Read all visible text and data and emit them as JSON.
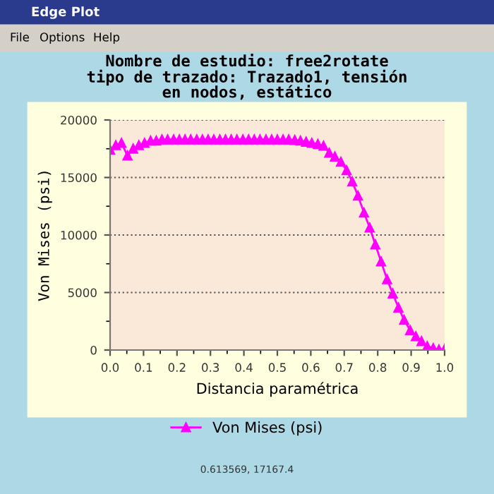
{
  "chart_data": {
    "type": "line",
    "title": "Nombre de estudio: free2rotate\ntipo de trazado: Trazado1, tensión\nen nodos, estático",
    "xlabel": "Distancia paramétrica",
    "ylabel": "Von Mises (psi)",
    "annotations": [
      "Edge Plot",
      "File",
      "Options",
      "Help",
      "0.613569, 17167.4"
    ],
    "x": [
      0,
      0.017,
      0.034,
      0.052,
      0.069,
      0.086,
      0.103,
      0.121,
      0.138,
      0.155,
      0.172,
      0.19,
      0.207,
      0.224,
      0.241,
      0.259,
      0.276,
      0.293,
      0.31,
      0.328,
      0.345,
      0.362,
      0.379,
      0.397,
      0.414,
      0.431,
      0.448,
      0.466,
      0.483,
      0.5,
      0.517,
      0.534,
      0.552,
      0.569,
      0.586,
      0.603,
      0.621,
      0.638,
      0.655,
      0.672,
      0.69,
      0.707,
      0.724,
      0.741,
      0.759,
      0.776,
      0.793,
      0.81,
      0.828,
      0.845,
      0.862,
      0.879,
      0.897,
      0.914,
      0.931,
      0.948,
      0.966,
      0.983,
      1.0
    ],
    "series": [
      {
        "name": "Von Mises (psi)",
        "color": "#ff00ff",
        "values": [
          17400,
          17800,
          18000,
          16900,
          17500,
          17800,
          18000,
          18200,
          18200,
          18300,
          18300,
          18300,
          18300,
          18300,
          18300,
          18300,
          18300,
          18300,
          18300,
          18300,
          18300,
          18300,
          18300,
          18300,
          18300,
          18300,
          18300,
          18300,
          18300,
          18300,
          18300,
          18300,
          18250,
          18200,
          18100,
          18000,
          17900,
          17750,
          17140,
          16810,
          16360,
          15620,
          14640,
          13410,
          11940,
          10640,
          9170,
          7690,
          6140,
          4910,
          3680,
          2620,
          1720,
          1190,
          770,
          330,
          160,
          40,
          80
        ]
      }
    ],
    "xlim": [
      0,
      1
    ],
    "xticks": [
      {
        "value": 0,
        "label": "0.0"
      },
      0.1,
      0.2,
      0.3,
      0.4,
      0.5,
      0.6,
      0.7,
      0.8,
      0.9,
      {
        "value": 1,
        "label": "1.0"
      }
    ],
    "ylim": [
      0,
      20000
    ],
    "yticks": [
      0,
      5000,
      10000,
      15000,
      20000
    ],
    "grid": "y",
    "legend": "bottom",
    "marker": "triangle",
    "line_style": "solid"
  }
}
